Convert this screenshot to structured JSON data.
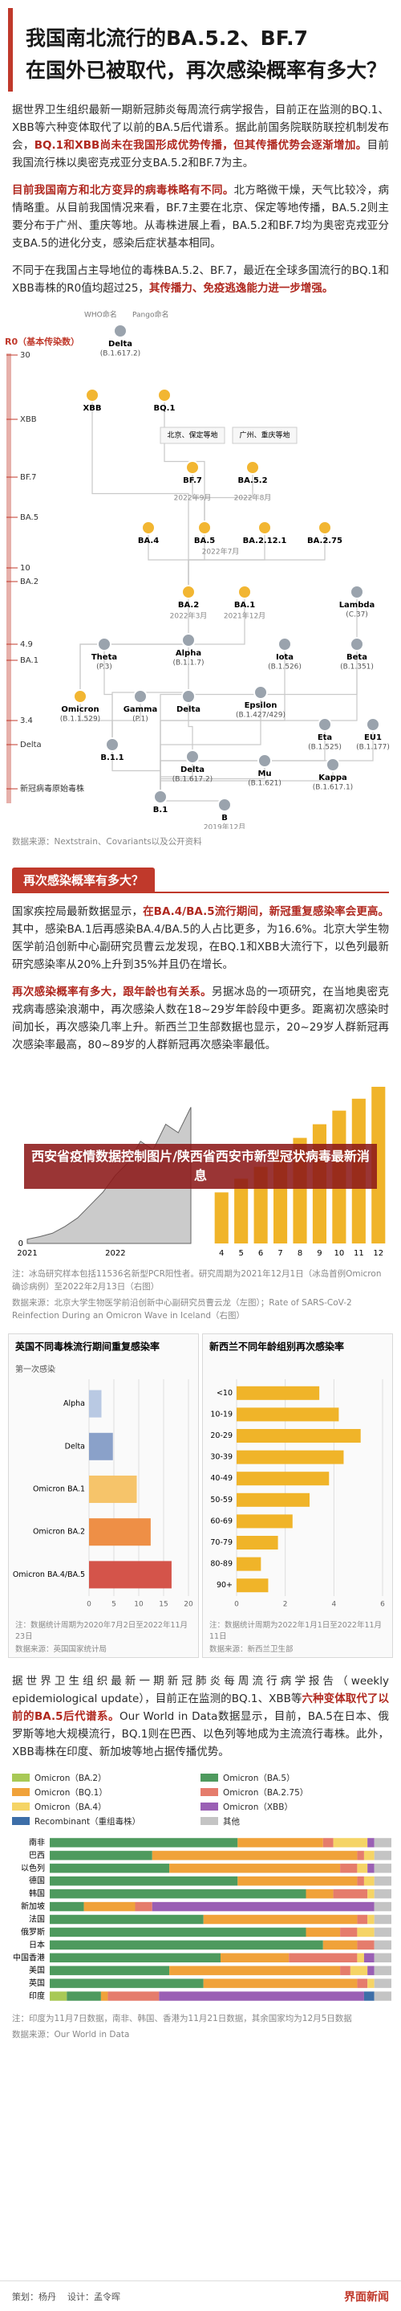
{
  "header": {
    "title": [
      "我国南北流行的BA.5.2、BF.7",
      "在国外已被取代，再次感染概率有多大？"
    ]
  },
  "intro": [
    [
      {
        "text": "据世界卫生组织最新一期新冠肺炎每周流行病学报告，目前正在监测的BQ.1、XBB等六种变体取代了以前的BA.5后代谱系。据此前国务院联防联控机制发布会，"
      },
      {
        "text": "BQ.1和XBB尚未在我国形成优势传播，但其传播优势会逐渐增加。",
        "bold": true
      },
      {
        "text": "目前我国流行株以奥密克戎亚分支BA.5.2和BF.7为主。"
      }
    ],
    [
      {
        "text": "目前我国南方和北方变异的病毒株略有不同。",
        "bold": true
      },
      {
        "text": "北方略微干燥，天气比较冷，病情略重。从目前我国情况来看，BF.7主要在北京、保定等地传播，BA.5.2则主要分布于广州、重庆等地。从毒株进展上看，BA.5.2和BF.7均为奥密克戎亚分支BA.5的进化分支，感染后症状基本相同。"
      }
    ],
    [
      {
        "text": "不同于在我国占主导地位的毒株BA.5.2、BF.7，最近在全球多国流行的BQ.1和XBB毒株的R0值均超过25，"
      },
      {
        "text": "其传播力、免疫逃逸能力进一步增强。",
        "bold": true
      }
    ]
  ],
  "diagram": {
    "legend": [
      "WHO命名",
      "Pango命名"
    ],
    "r0_title": "R0（基本传染数）",
    "r0_labels": [
      "30",
      "XBB",
      "BF.7",
      "BA.5",
      "10",
      "BA.2",
      "4.9",
      "BA.1",
      "3.4",
      "Delta",
      "新冠病毒原始毒株"
    ],
    "nodes": [
      {
        "name": "Delta",
        "pango": "(B.1.617.2)"
      },
      {
        "name": "XBB"
      },
      {
        "name": "BQ.1"
      },
      {
        "name": "BF.7"
      },
      {
        "name": "BA.5.2"
      },
      {
        "name": "BA.4"
      },
      {
        "name": "BA.5"
      },
      {
        "name": "BA.2.12.1"
      },
      {
        "name": "BA.2.75"
      },
      {
        "name": "BA.2"
      },
      {
        "name": "BA.1"
      },
      {
        "name": "Lambda",
        "pango": "(C.37)"
      },
      {
        "name": "Theta",
        "pango": "(P.3)"
      },
      {
        "name": "Alpha",
        "pango": "(B.1.1.7)"
      },
      {
        "name": "Iota",
        "pango": "(B.1.526)"
      },
      {
        "name": "Beta",
        "pango": "(B.1.351)"
      },
      {
        "name": "Omicron",
        "pango": "(B.1.1.529)"
      },
      {
        "name": "Gamma",
        "pango": "(P.1)"
      },
      {
        "name": "Delta"
      },
      {
        "name": "Epsilon",
        "pango": "(B.1.427/429)"
      },
      {
        "name": "B.1.1"
      },
      {
        "name": "Eta",
        "pango": "(B.1.525)"
      },
      {
        "name": "EU1",
        "pango": "(B.1.177)"
      },
      {
        "name": "Delta",
        "pango": "(B.1.617.2)"
      },
      {
        "name": "Mu",
        "pango": "(B.1.621)"
      },
      {
        "name": "Kappa",
        "pango": "(B.1.617.1)"
      },
      {
        "name": "B.1"
      },
      {
        "name": "B"
      }
    ],
    "dates": [
      "2022年9月",
      "2022年8月",
      "2022年7月",
      "2022年3月",
      "2021年12月",
      "2019年12月"
    ],
    "callouts": [
      "北京、保定等地",
      "广州、重庆等地"
    ],
    "source": "数据来源：Nextstrain、Covariants以及公开资料"
  },
  "section": {
    "heading": "再次感染概率有多大？",
    "paragraphs": [
      [
        {
          "text": "国家疾控局最新数据显示，"
        },
        {
          "text": "在BA.4/BA.5流行期间，新冠重复感染率会更高。",
          "bold": true
        },
        {
          "text": "其中，感染BA.1后再感染BA.4/BA.5的人占比更多，为16.6%。北京大学生物医学前沿创新中心副研究员曹云龙发现，在BQ.1和XBB大流行下，以色列最新研究感染率从20%上升到35%并且仍在增长。"
        }
      ],
      [
        {
          "text": "再次感染概率有多大，跟年龄也有关系。",
          "bold": true
        },
        {
          "text": "另据冰岛的一项研究，在当地奥密克戎病毒感染浪潮中，再次感染人数在18~29岁年龄段中更多。距离初次感染时间加长，再次感染几率上升。新西兰卫生部数据也显示，20~29岁人群新冠再次感染率最高，80~89岁的人群新冠再次感染率最低。"
        }
      ]
    ],
    "overlay": "西安省疫情数据控制图片/陕西省西安市新型冠状病毒最新消息",
    "chart_notes": [
      "注：冰岛研究样本包括11536名新型PCR阳性者。研究周期为2021年12月1日（冰岛首例Omicron确诊病例）至2022年2月13日（右图）",
      "数据来源：北京大学生物医学前沿创新中心副研究员曹云龙（左图）；Rate of SARS-CoV-2 Reinfection During an Omicron Wave in Iceland（右图）"
    ]
  },
  "chart_data": [
    {
      "type": "area",
      "color": "#a9a9a9",
      "categories": [
        "2021",
        null,
        null,
        null,
        null,
        null,
        null,
        "2022",
        null,
        null,
        null,
        null,
        null,
        null
      ],
      "values": [
        0.5,
        0.8,
        1.2,
        2,
        3,
        4.5,
        6,
        8,
        9.5,
        12,
        11,
        14,
        13,
        16
      ],
      "ylim": [
        0,
        20
      ],
      "yticks": [
        0
      ]
    },
    {
      "type": "bar",
      "color": "#f0b429",
      "categories": [
        "4",
        "5",
        "6",
        "7",
        "8",
        "9",
        "10",
        "11",
        "12"
      ],
      "values": [
        30,
        38,
        45,
        55,
        62,
        70,
        78,
        85,
        92
      ],
      "ylim": [
        0,
        100
      ]
    },
    {
      "type": "hbar",
      "title": "英国不同毒株流行期间重复感染率",
      "y_label": "第一次感染",
      "categories": [
        "Alpha",
        "Delta",
        "Omicron BA.1",
        "Omicron BA.2",
        "Omicron BA.4/BA.5"
      ],
      "colors": [
        "#b9c9e3",
        "#8aa1c9",
        "#f6c46a",
        "#ee8f46",
        "#d4544a"
      ],
      "values": [
        2.5,
        4.8,
        9.6,
        12.4,
        16.6
      ],
      "xlim": [
        0,
        20
      ],
      "xticks": [
        0,
        5,
        10,
        15,
        20
      ],
      "note": "注：数据统计周期为2020年7月2日至2022年11月23日",
      "source": "数据来源：英国国家统计局"
    },
    {
      "type": "hbar",
      "title": "新西兰不同年龄组别再次感染率",
      "color": "#f0b429",
      "categories": [
        "<10",
        "10-19",
        "20-29",
        "30-39",
        "40-49",
        "50-59",
        "60-69",
        "70-79",
        "80-89",
        "90+"
      ],
      "values": [
        3.4,
        4.2,
        5.1,
        4.4,
        3.8,
        3.0,
        2.3,
        1.7,
        1.0,
        1.3
      ],
      "xlim": [
        0,
        6
      ],
      "xticks": [
        0,
        2,
        4,
        6
      ],
      "note": "注：数据统计周期为2022年1月1日至2022年11月11日",
      "source": "数据来源：新西兰卫生部"
    },
    {
      "type": "stacked_hbar",
      "categories": [
        "南非",
        "巴西",
        "以色列",
        "德国",
        "韩国",
        "新加坡",
        "法国",
        "俄罗斯",
        "日本",
        "中国香港",
        "美国",
        "英国",
        "印度"
      ],
      "series": [
        {
          "name": "Omicron（BA.2）",
          "color": "#a8c956",
          "values": [
            0,
            0,
            0,
            0,
            0,
            0,
            0,
            0,
            0,
            0,
            0,
            0,
            5
          ]
        },
        {
          "name": "Omicron（BA.5）",
          "color": "#4e9a5e",
          "values": [
            55,
            30,
            35,
            55,
            75,
            10,
            45,
            75,
            80,
            50,
            35,
            45,
            10
          ]
        },
        {
          "name": "Omicron（BQ.1）",
          "color": "#f0a23a",
          "values": [
            25,
            60,
            50,
            35,
            8,
            15,
            45,
            10,
            10,
            20,
            50,
            45,
            2
          ]
        },
        {
          "name": "Omicron（BA.2.75）",
          "color": "#e57c6c",
          "values": [
            3,
            2,
            5,
            2,
            10,
            5,
            3,
            5,
            5,
            20,
            3,
            3,
            15
          ]
        },
        {
          "name": "Omicron（BA.4）",
          "color": "#f5d466",
          "values": [
            10,
            3,
            3,
            3,
            2,
            0,
            2,
            5,
            0,
            2,
            5,
            2,
            0
          ]
        },
        {
          "name": "Omicron（XBB）",
          "color": "#9a5fb4",
          "values": [
            2,
            0,
            2,
            0,
            0,
            65,
            0,
            0,
            0,
            3,
            2,
            0,
            60
          ]
        },
        {
          "name": "Recombinant（重组毒株）",
          "color": "#3d6ea8",
          "values": [
            0,
            0,
            0,
            0,
            0,
            0,
            0,
            0,
            0,
            0,
            0,
            0,
            3
          ]
        },
        {
          "name": "其他",
          "color": "#c4c4c4",
          "values": [
            5,
            5,
            5,
            5,
            5,
            5,
            5,
            5,
            5,
            5,
            5,
            5,
            5
          ]
        }
      ],
      "xlim": [
        0,
        100
      ]
    }
  ],
  "final": {
    "paragraph": [
      {
        "text": "据世界卫生组织最新一期新冠肺炎每周流行病学报告（weekly epidemiological update），目前正在监测的BQ.1、XBB等"
      },
      {
        "text": "六种变体取代了以前的BA.5后代谱系。",
        "bold": true
      },
      {
        "text": "Our World in Data数据显示，目前，BA.5在日本、俄罗斯等地大规模流行，BQ.1则在巴西、以色列等地成为主流流行毒株。此外，XBB毒株在印度、新加坡等地占据传播优势。"
      }
    ],
    "note": "注：印度为11月7日数据，南非、韩国、香港为11月21日数据，其余国家均为12月5日数据",
    "source": "数据来源：Our World in Data"
  },
  "footer": {
    "credits": [
      "策划：杨丹",
      "设计：孟令晖"
    ],
    "brand": "界面新闻"
  }
}
